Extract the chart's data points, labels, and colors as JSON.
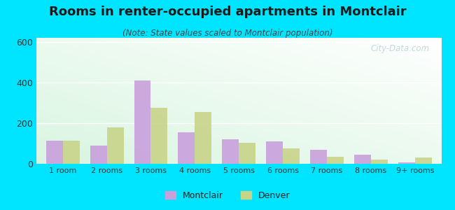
{
  "title": "Rooms in renter-occupied apartments in Montclair",
  "subtitle": "(Note: State values scaled to Montclair population)",
  "categories": [
    "1 room",
    "2 rooms",
    "3 rooms",
    "4 rooms",
    "5 rooms",
    "6 rooms",
    "7 rooms",
    "8 rooms",
    "9+ rooms"
  ],
  "montclair": [
    115,
    90,
    410,
    155,
    120,
    110,
    70,
    45,
    8
  ],
  "denver": [
    115,
    180,
    275,
    255,
    105,
    75,
    35,
    22,
    30
  ],
  "montclair_color": "#c9a0dc",
  "denver_color": "#c8d48a",
  "background_outer": "#00e5ff",
  "ylim": [
    0,
    620
  ],
  "yticks": [
    0,
    200,
    400,
    600
  ],
  "bar_width": 0.38,
  "legend_montclair": "Montclair",
  "legend_denver": "Denver",
  "title_fontsize": 13,
  "subtitle_fontsize": 8.5,
  "tick_fontsize": 8,
  "watermark": "City-Data.com"
}
